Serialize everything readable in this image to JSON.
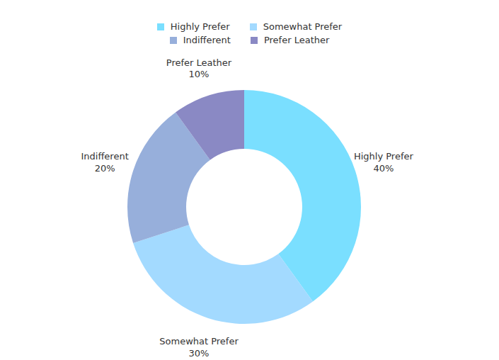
{
  "chart_data": {
    "type": "donut",
    "categories": [
      "Highly Prefer",
      "Somewhat Prefer",
      "Indifferent",
      "Prefer Leather"
    ],
    "values": [
      40,
      30,
      20,
      10
    ],
    "value_labels": [
      "40%",
      "30%",
      "20%",
      "10%"
    ],
    "colors": [
      "#7adfff",
      "#a3daff",
      "#97afdb",
      "#8a89c4"
    ],
    "legend": "top"
  }
}
